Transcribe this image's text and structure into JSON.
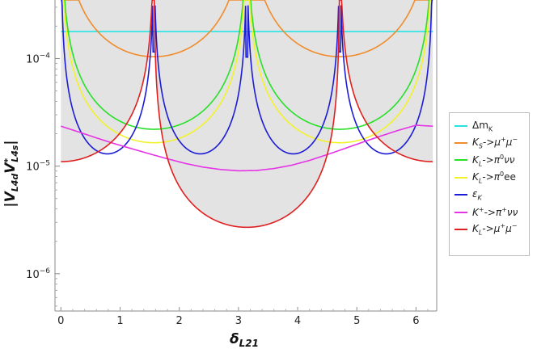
{
  "chart_data": {
    "type": "line",
    "xlabel": "δ",
    "xlabel_sub": "L21",
    "ylabel": "|V",
    "ylabel_parts": [
      "|V",
      "L4d",
      "V",
      "*",
      "L4s",
      "|"
    ],
    "x_range": [
      0,
      6.283
    ],
    "xlim": [
      -0.1,
      6.35
    ],
    "ylim": [
      4.5e-07,
      0.00035
    ],
    "y_scale": "log",
    "x_ticks": [
      0,
      1,
      2,
      3,
      4,
      5,
      6
    ],
    "x_tick_labels": [
      "0",
      "1",
      "2",
      "3",
      "4",
      "5",
      "6"
    ],
    "y_ticks": [
      1e-06,
      1e-05,
      0.0001
    ],
    "y_tick_labels": [
      {
        "base": "10",
        "exp": "−6"
      },
      {
        "base": "10",
        "exp": "−5"
      },
      {
        "base": "10",
        "exp": "−4"
      }
    ],
    "shaded_region_color": "#e3e3e3",
    "series": [
      {
        "id": "dmk",
        "name": "Δm_K",
        "label_html": "Δm<sub>K</sub>",
        "color": "#27e3e3",
        "kind": "flat",
        "value": 0.000178
      },
      {
        "id": "ks",
        "name": "K_S->μ⁺μ⁻",
        "label_html": "<i>K<sub>S</sub></i>-&gt;<i>μ</i><sup>+</sup><i>μ</i><sup>−</sup>",
        "color": "#f08c2c",
        "kind": "sin2",
        "min": 0.000104,
        "minima_at": [
          1.5708,
          4.7124
        ]
      },
      {
        "id": "kl_pinn",
        "name": "K_L->π⁰νν",
        "label_html": "<i>K<sub>L</sub></i>-&gt;<i>π</i><sup>0</sup><i>νν</i>",
        "color": "#28e028",
        "kind": "sin",
        "min": 2.2e-05,
        "minima_at": [
          1.5708,
          4.7124
        ]
      },
      {
        "id": "kl_piee",
        "name": "K_L->π⁰ee",
        "label_html": "<i>K<sub>L</sub></i>-&gt;<i>π</i><sup>0</sup>ee",
        "color": "#f2f22a",
        "kind": "sin",
        "min": 1.65e-05,
        "minima_at": [
          1.5708,
          4.7124
        ]
      },
      {
        "id": "epsk",
        "name": "ε_K",
        "label_html": "<i>ε<sub>K</sub></i>",
        "color": "#1c1cd6",
        "kind": "sin2",
        "min": 1.3e-05,
        "minima_at": [
          0.7854,
          2.3562,
          3.927,
          5.4978
        ],
        "spikes": [
          {
            "x": 1.5708,
            "y": 0.000115
          },
          {
            "x": 3.1416,
            "y": 0.000103
          },
          {
            "x": 4.7124,
            "y": 0.000115
          }
        ]
      },
      {
        "id": "kp",
        "name": "K⁺->π⁺νν",
        "label_html": "<i>K</i><sup>+</sup>-&gt;<i>π</i><sup>+</sup><i>νν</i>",
        "color": "#e633e6",
        "kind": "smooth",
        "x": [
          0,
          0.3,
          0.6,
          0.9,
          1.2,
          1.5,
          1.8,
          2.1,
          2.4,
          2.7,
          3.0,
          3.3,
          3.6,
          3.9,
          4.2,
          4.5,
          4.8,
          5.1,
          5.4,
          5.7,
          6.0,
          6.283
        ],
        "y": [
          2.35e-05,
          2.08e-05,
          1.83e-05,
          1.62e-05,
          1.45e-05,
          1.3e-05,
          1.17e-05,
          1.06e-05,
          9.8e-06,
          9.3e-06,
          9.05e-06,
          9.1e-06,
          9.5e-06,
          1.02e-05,
          1.13e-05,
          1.28e-05,
          1.46e-05,
          1.67e-05,
          1.9e-05,
          2.15e-05,
          2.4e-05,
          2.35e-05
        ]
      },
      {
        "id": "klmumu",
        "name": "K_L->μ⁺μ⁻",
        "label_html": "<i>K<sub>L</sub></i>-&gt;<i>μ</i><sup>+</sup><i>μ</i><sup>−</sup>",
        "color": "#e02020",
        "kind": "klmumu",
        "edge": 1.1e-05,
        "center": 2.7e-06
      }
    ]
  }
}
